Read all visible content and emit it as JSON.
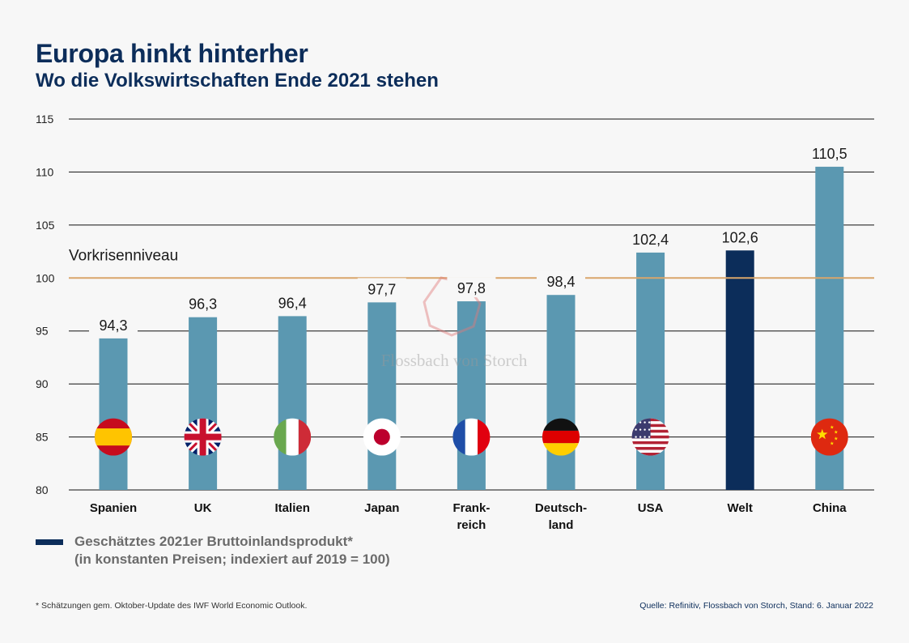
{
  "header": {
    "title": "Europa hinkt hinterher",
    "subtitle": "Wo die Volkswirtschaften Ende 2021 stehen"
  },
  "chart_data": {
    "type": "bar",
    "categories": [
      "Spanien",
      "UK",
      "Italien",
      "Japan",
      "Frank-\nreich",
      "Deutsch-\nland",
      "USA",
      "Welt",
      "China"
    ],
    "values": [
      94.3,
      96.3,
      96.4,
      97.7,
      97.8,
      98.4,
      102.4,
      102.6,
      110.5
    ],
    "value_labels": [
      "94,3",
      "96,3",
      "96,4",
      "97,7",
      "97,8",
      "98,4",
      "102,4",
      "102,6",
      "110,5"
    ],
    "flags": [
      "flag-spain-icon",
      "flag-uk-icon",
      "flag-italy-icon",
      "flag-japan-icon",
      "flag-france-icon",
      "flag-germany-icon",
      "flag-usa-icon",
      "",
      "flag-china-icon"
    ],
    "highlight_category": "Welt",
    "ylim": [
      80,
      115
    ],
    "yticks": [
      80,
      85,
      90,
      95,
      100,
      105,
      110,
      115
    ],
    "reference_line": {
      "value": 100,
      "label": "Vorkrisenniveau",
      "color": "#d9a66b"
    },
    "grid": true,
    "colors": {
      "bar": "#5b98b1",
      "highlight": "#0c2d5a",
      "grid": "#111111"
    },
    "xlabel": "",
    "ylabel": ""
  },
  "legend": {
    "label": "Geschätztes 2021er Bruttoinlandsprodukt*\n(in konstanten Preisen; indexiert auf 2019 = 100)",
    "color": "#0c2d5a"
  },
  "watermark": {
    "text": "Flossbach von Storch"
  },
  "footer": {
    "footnote": "* Schätzungen gem. Oktober-Update des IWF World Economic Outlook.",
    "source": "Quelle: Refinitiv, Flossbach von Storch, Stand: 6. Januar 2022"
  }
}
